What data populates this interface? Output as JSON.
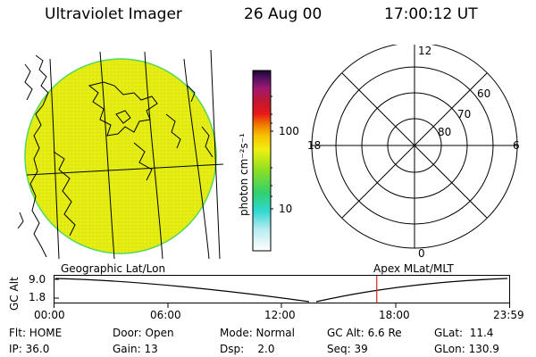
{
  "header": {
    "title": "Ultraviolet Imager",
    "date": "26 Aug 00",
    "time": "17:00:12 UT"
  },
  "colorbar": {
    "unit_label": "photon cm⁻²s⁻¹",
    "tick_100": "100",
    "tick_10": "10"
  },
  "polar_plot": {
    "mlt_top": "12",
    "mlt_left": "18",
    "mlt_right": "6",
    "mlt_bottom": "0",
    "lat_60": "60",
    "lat_70": "70",
    "lat_80": "80"
  },
  "timeline": {
    "left_label": "Geographic Lat/Lon",
    "right_label": "Apex MLat/MLT",
    "y_axis_label": "GC Alt",
    "y_ticks": [
      "9.0",
      "1.8"
    ],
    "x_ticks": [
      "00:00",
      "06:00",
      "12:00",
      "18:00",
      "23:59"
    ],
    "current_time_marker_hours": 17.0
  },
  "status": {
    "flt": "Flt: HOME",
    "ip": "IP: 36.0",
    "door": "Door: Open",
    "gain": "Gain: 13",
    "mode": "Mode: Normal",
    "dsp": "Dsp:    2.0",
    "gc_alt": "GC Alt: 6.6 Re",
    "seq": "Seq: 39",
    "glat": "GLat:  11.4",
    "glon": "GLon: 130.9"
  },
  "colors": {
    "disk_fill": "#e6ee10",
    "disk_edge": "#56d65a",
    "marker": "#e02020"
  }
}
